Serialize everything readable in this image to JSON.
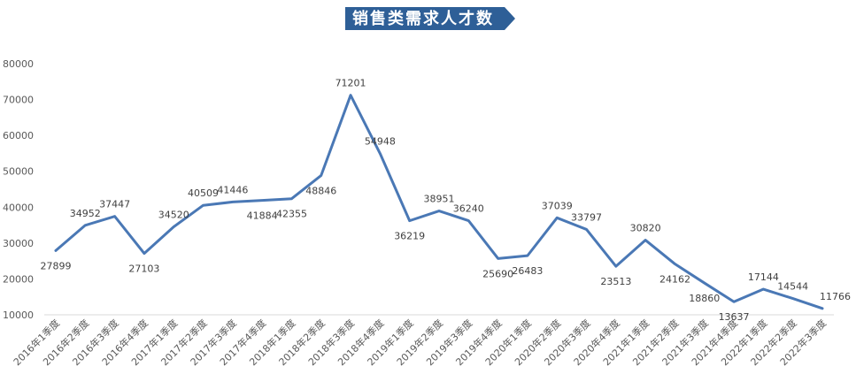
{
  "chart_data": {
    "type": "line",
    "title": "销售类需求人才数",
    "xlabel": "",
    "ylabel": "",
    "ylim": [
      10000,
      80000
    ],
    "yticks": [
      10000,
      20000,
      30000,
      40000,
      50000,
      60000,
      70000,
      80000
    ],
    "grid": false,
    "legend": "none",
    "categories": [
      "2016年1季度",
      "2016年2季度",
      "2016年3季度",
      "2016年4季度",
      "2017年1季度",
      "2017年2季度",
      "2017年3季度",
      "2017年4季度",
      "2018年1季度",
      "2018年2季度",
      "2018年3季度",
      "2018年4季度",
      "2019年1季度",
      "2019年2季度",
      "2019年3季度",
      "2019年4季度",
      "2020年1季度",
      "2020年2季度",
      "2020年3季度",
      "2020年4季度",
      "2021年1季度",
      "2021年2季度",
      "2021年3季度",
      "2021年4季度",
      "2022年1季度",
      "2022年2季度",
      "2022年3季度"
    ],
    "series": [
      {
        "values": [
          27899,
          34952,
          37447,
          27103,
          34520,
          40509,
          41446,
          41884,
          42355,
          48846,
          71201,
          54948,
          36219,
          38951,
          36240,
          25690,
          26483,
          37039,
          33797,
          23513,
          30820,
          24162,
          18860,
          13637,
          17144,
          14544,
          11766
        ],
        "color": "#4a78b5"
      }
    ],
    "title_bg": "#2e5f97"
  }
}
